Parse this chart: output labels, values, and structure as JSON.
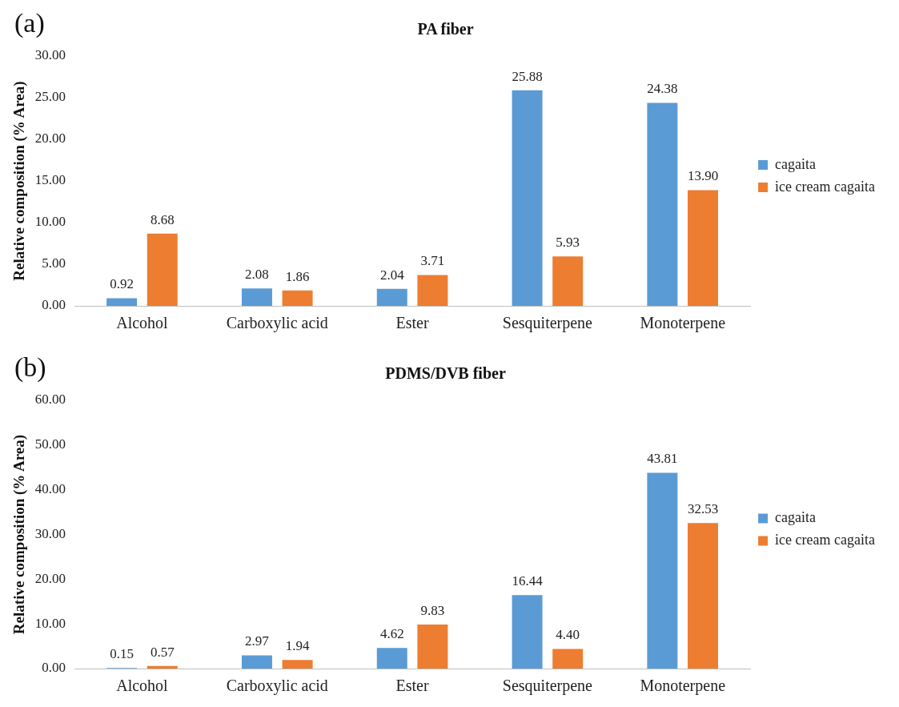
{
  "chart_data": [
    {
      "type": "bar",
      "title": "PA fiber",
      "ylabel": "Relative composition (% Area)",
      "annotations": [
        "(a)"
      ],
      "categories": [
        "Alcohol",
        "Carboxylic acid",
        "Ester",
        "Sesquiterpene",
        "Monoterpene"
      ],
      "series": [
        {
          "name": "cagaita",
          "color": "#5b9bd5",
          "values": [
            0.92,
            2.08,
            2.04,
            25.88,
            24.38
          ],
          "value_labels": [
            "0.92",
            "2.08",
            "2.04",
            "25.88",
            "24.38"
          ]
        },
        {
          "name": "ice cream cagaita",
          "color": "#ed7d31",
          "values": [
            8.68,
            1.86,
            3.71,
            5.93,
            13.9
          ],
          "value_labels": [
            "8.68",
            "1.86",
            "3.71",
            "5.93",
            "13.90"
          ]
        }
      ],
      "ylim": [
        0,
        30
      ],
      "yticks": [
        {
          "value": 0,
          "label": "0.00"
        },
        {
          "value": 5,
          "label": "5.00"
        },
        {
          "value": 10,
          "label": "10.00"
        },
        {
          "value": 15,
          "label": "15.00"
        },
        {
          "value": 20,
          "label": "20.00"
        },
        {
          "value": 25,
          "label": "25.00"
        },
        {
          "value": 30,
          "label": "30.00"
        }
      ],
      "grid": false,
      "legend": "right"
    },
    {
      "type": "bar",
      "title": "PDMS/DVB fiber",
      "ylabel": "Relative composition (% Area)",
      "annotations": [
        "(b)"
      ],
      "categories": [
        "Alcohol",
        "Carboxylic acid",
        "Ester",
        "Sesquiterpene",
        "Monoterpene"
      ],
      "series": [
        {
          "name": "cagaita",
          "color": "#5b9bd5",
          "values": [
            0.15,
            2.97,
            4.62,
            16.44,
            43.81
          ],
          "value_labels": [
            "0.15",
            "2.97",
            "4.62",
            "16.44",
            "43.81"
          ]
        },
        {
          "name": "ice cream cagaita",
          "color": "#ed7d31",
          "values": [
            0.57,
            1.94,
            9.83,
            4.4,
            32.53
          ],
          "value_labels": [
            "0.57",
            "1.94",
            "9.83",
            "4.40",
            "32.53"
          ]
        }
      ],
      "ylim": [
        0,
        60
      ],
      "yticks": [
        {
          "value": 0,
          "label": "0.00"
        },
        {
          "value": 10,
          "label": "10.00"
        },
        {
          "value": 20,
          "label": "20.00"
        },
        {
          "value": 30,
          "label": "30.00"
        },
        {
          "value": 40,
          "label": "40.00"
        },
        {
          "value": 50,
          "label": "50.00"
        },
        {
          "value": 60,
          "label": "60.00"
        }
      ],
      "grid": false,
      "legend": "right"
    }
  ]
}
